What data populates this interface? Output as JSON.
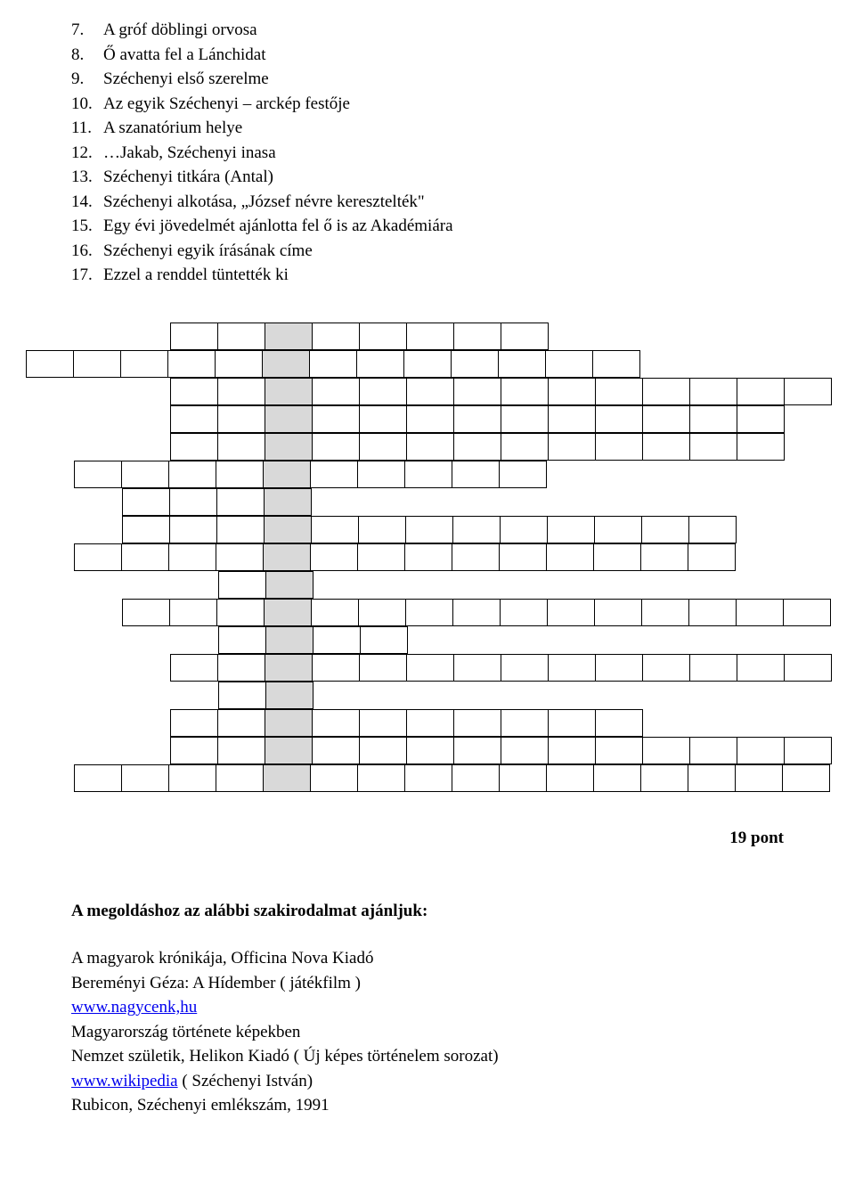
{
  "clues": [
    {
      "num": "7.",
      "text": "A gróf döblingi orvosa"
    },
    {
      "num": "8.",
      "text": "Ő avatta fel a Lánchidat"
    },
    {
      "num": "9.",
      "text": "Széchenyi első szerelme"
    },
    {
      "num": "10.",
      "text": "Az egyik Széchenyi – arckép festője"
    },
    {
      "num": "11.",
      "text": "A szanatórium helye"
    },
    {
      "num": "12.",
      "text": "…Jakab, Széchenyi inasa"
    },
    {
      "num": "13.",
      "text": "Széchenyi titkára (Antal)"
    },
    {
      "num": "14.",
      "text": "Széchenyi alkotása, „József névre keresztelték\""
    },
    {
      "num": "15.",
      "text": "Egy évi jövedelmét ajánlotta fel ő is az Akadémiára"
    },
    {
      "num": "16.",
      "text": "Széchenyi egyik írásának címe"
    },
    {
      "num": "17.",
      "text": "Ezzel a renddel tüntették ki"
    }
  ],
  "crossword": {
    "cols": 17,
    "shadedCol": 5,
    "colors": {
      "bg": "#ffffff",
      "shade": "#d9d9d9",
      "border": "#000000"
    },
    "rows": [
      {
        "start": 3,
        "len": 8
      },
      {
        "start": 0,
        "len": 13
      },
      {
        "start": 3,
        "len": 14
      },
      {
        "start": 3,
        "len": 13
      },
      {
        "start": 3,
        "len": 13
      },
      {
        "start": 1,
        "len": 10
      },
      {
        "start": 2,
        "len": 4
      },
      {
        "start": 2,
        "len": 13
      },
      {
        "start": 1,
        "len": 14
      },
      {
        "start": 4,
        "len": 2
      },
      {
        "start": 2,
        "len": 15
      },
      {
        "start": 4,
        "len": 4
      },
      {
        "start": 3,
        "len": 14
      },
      {
        "start": 4,
        "len": 2
      },
      {
        "start": 3,
        "len": 10
      },
      {
        "start": 3,
        "len": 14
      },
      {
        "start": 1,
        "len": 16
      }
    ]
  },
  "points": "19 pont",
  "refsHeading": "A megoldáshoz az alábbi szakirodalmat ajánljuk:",
  "refs": [
    {
      "text": "A magyarok krónikája, Officina Nova Kiadó"
    },
    {
      "text": "Bereményi Géza: A Hídember ( játékfilm )"
    },
    {
      "link": "www.nagycenk,hu"
    },
    {
      "text": "Magyarország története képekben"
    },
    {
      "text": "Nemzet születik, Helikon Kiadó ( Új képes történelem sorozat)"
    },
    {
      "link": "www.wikipedia",
      "suffix": " ( Széchenyi István)"
    },
    {
      "text": "Rubicon, Széchenyi emlékszám, 1991"
    }
  ]
}
